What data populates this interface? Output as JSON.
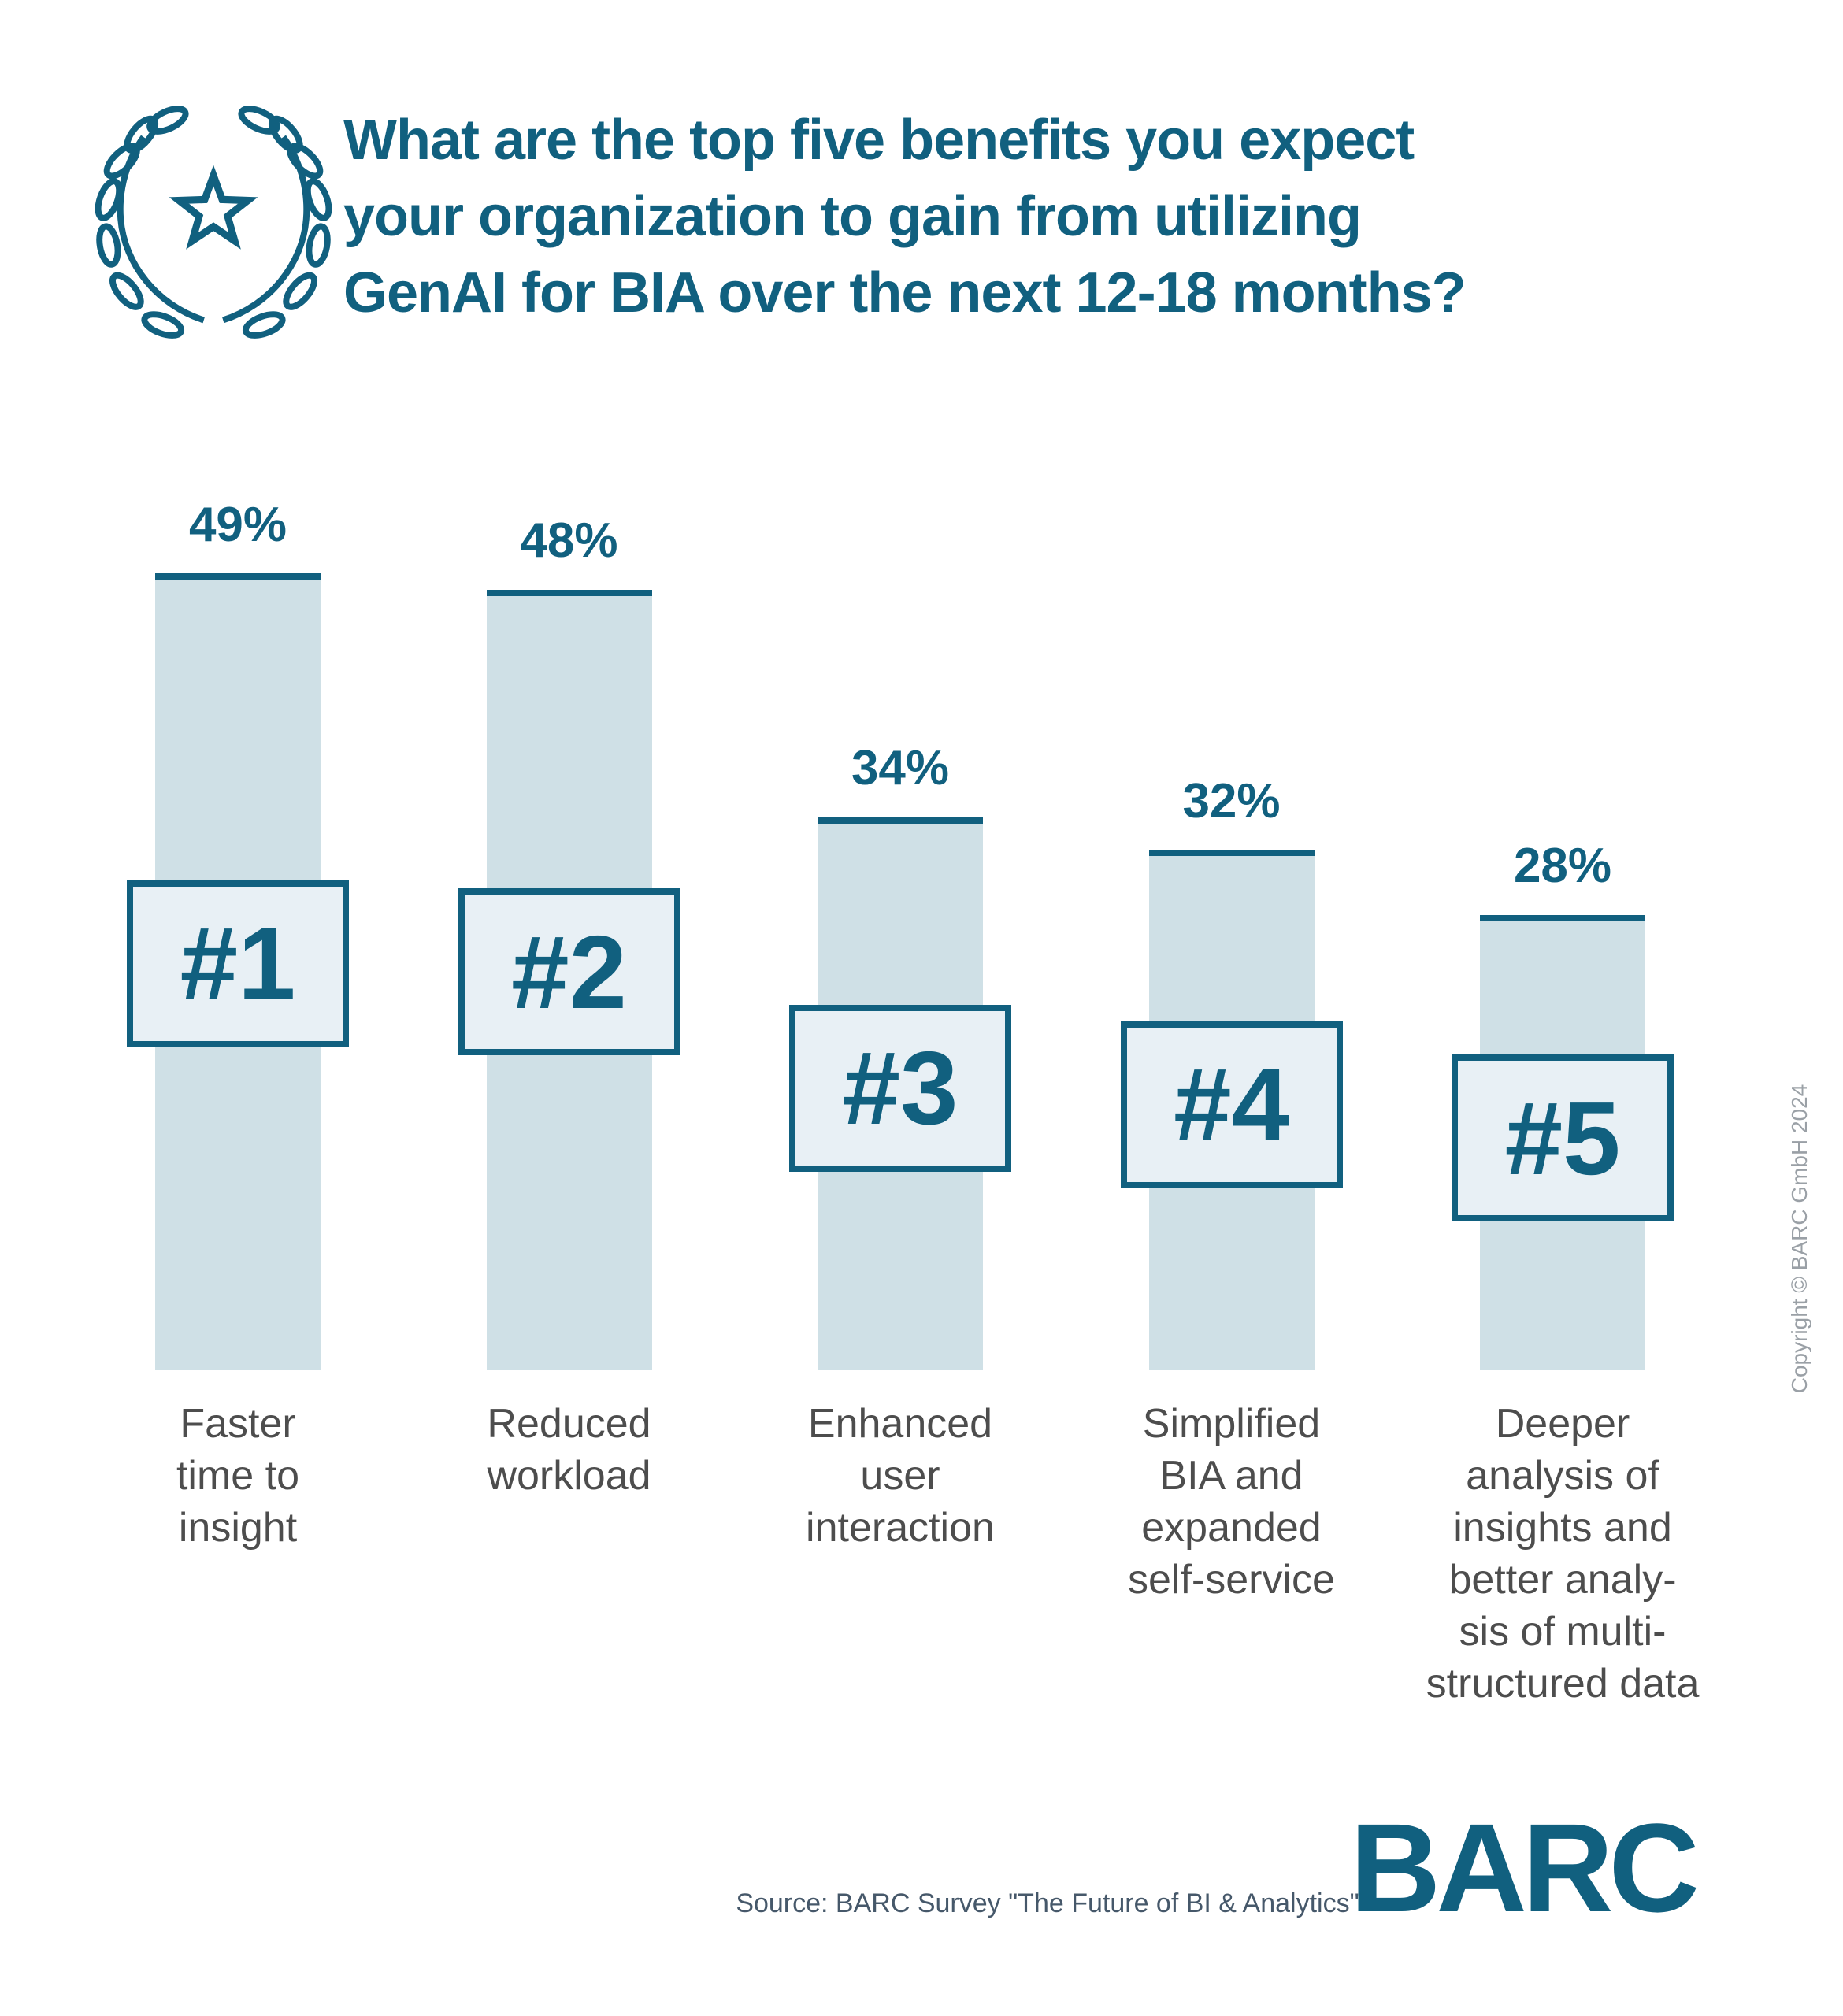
{
  "header": {
    "title_lines": [
      "What are the top five benefits you expect",
      "your organization to gain from utilizing",
      "GenAI for BIA over the next 12-18 months?"
    ]
  },
  "chart_data": {
    "type": "bar",
    "unit": "%",
    "title": "What are the top five benefits you expect your organization to gain from utilizing GenAI for BIA over the next 12-18 months?",
    "categories": [
      "Faster time to insight",
      "Reduced workload",
      "Enhanced user interaction",
      "Simplified BIA and expanded self-service",
      "Deeper analysis of insights and better analysis of multi-structured data"
    ],
    "values": [
      49,
      48,
      34,
      32,
      28
    ],
    "ylim": [
      0,
      52
    ],
    "grid": false,
    "legend": false,
    "bars": [
      {
        "rank": "#1",
        "value_label": "49%",
        "label_lines": [
          "Faster",
          "time to",
          "insight"
        ]
      },
      {
        "rank": "#2",
        "value_label": "48%",
        "label_lines": [
          "Reduced",
          "workload"
        ]
      },
      {
        "rank": "#3",
        "value_label": "34%",
        "label_lines": [
          "Enhanced",
          "user",
          "interaction"
        ]
      },
      {
        "rank": "#4",
        "value_label": "32%",
        "label_lines": [
          "Simplified",
          "BIA and",
          "expanded",
          "self-service"
        ]
      },
      {
        "rank": "#5",
        "value_label": "28%",
        "label_lines": [
          "Deeper",
          "analysis of",
          "insights and",
          "better analy-",
          "sis of multi-",
          "structured data"
        ]
      }
    ]
  },
  "sidebar_note": {
    "copyright": "Copyright © BARC GmbH 2024"
  },
  "footer": {
    "source": "Source: BARC Survey \"The Future of BI & Analytics\"",
    "logo_text": "BARC"
  },
  "colors": {
    "accent_teal": "#11607f",
    "bar_fill": "#cfe0e6",
    "rank_box_fill": "#e8f0f5",
    "category_text": "#4d4d4d",
    "copyright_text": "#9aa0a6",
    "source_text": "#46586a",
    "background": "#ffffff"
  }
}
